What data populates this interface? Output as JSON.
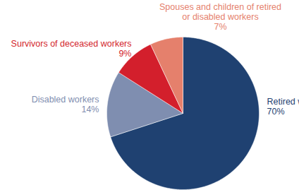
{
  "chart_data": {
    "type": "pie",
    "categories": [
      "Retired workers",
      "Disabled workers",
      "Survivors of deceased workers",
      "Spouses and children of retired or disabled workers"
    ],
    "values": [
      70,
      14,
      9,
      7
    ],
    "value_labels": [
      "70%",
      "14%",
      "9%",
      "7%"
    ],
    "colors": [
      "#1f4171",
      "#7f8eb0",
      "#d31f2c",
      "#e5806c"
    ],
    "data_labels": true
  }
}
